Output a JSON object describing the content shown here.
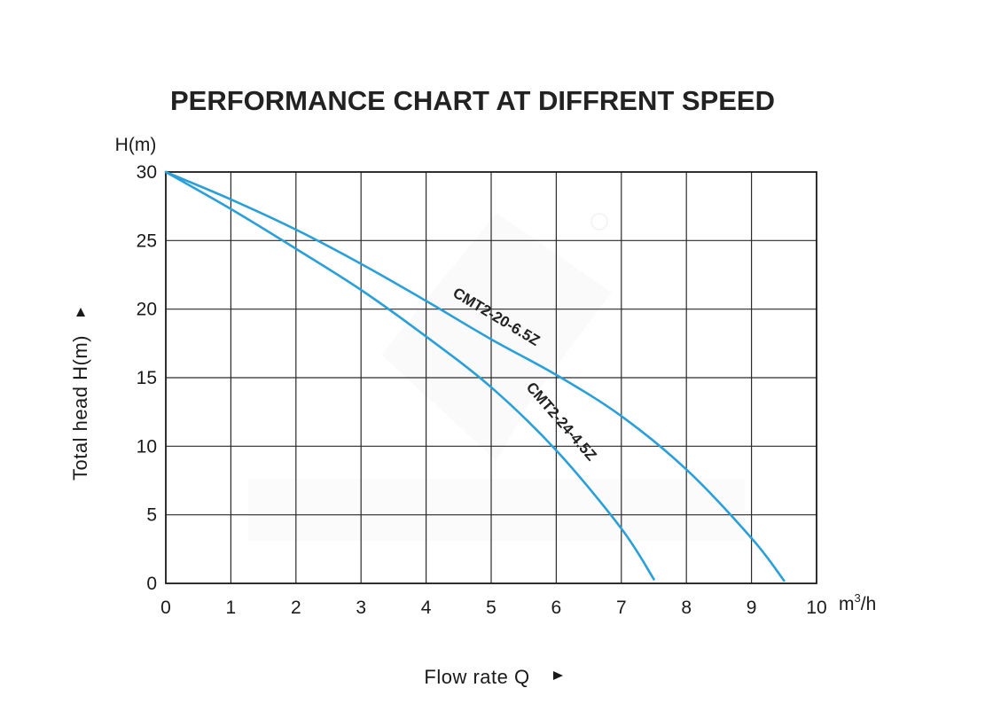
{
  "chart_data": {
    "type": "line",
    "title": "PERFORMANCE CHART AT DIFFRENT SPEED",
    "y_unit_top": "H(m)",
    "ylabel": "Total head H(m)",
    "xlabel": "Flow rate Q",
    "x_unit": "m",
    "x_unit_sup": "3",
    "x_unit_tail": "/h",
    "xlim": [
      0,
      10
    ],
    "ylim": [
      0,
      30
    ],
    "xticks": [
      "0",
      "1",
      "2",
      "3",
      "4",
      "5",
      "6",
      "7",
      "8",
      "9",
      "10"
    ],
    "yticks": [
      "0",
      "5",
      "10",
      "15",
      "20",
      "25",
      "30"
    ],
    "grid": true,
    "series": [
      {
        "name": "CMT2-20-6.5Z",
        "color": "#2a9fd8",
        "x": [
          0,
          1,
          2,
          3,
          4,
          5,
          6,
          7,
          8,
          9,
          9.5
        ],
        "y": [
          30,
          28,
          25.8,
          23.3,
          20.6,
          17.8,
          15.2,
          12.2,
          8.3,
          3.3,
          0.2
        ]
      },
      {
        "name": "CMT2-24-4.5Z",
        "color": "#2a9fd8",
        "x": [
          0,
          1,
          2,
          3,
          4,
          5,
          6,
          7,
          7.5
        ],
        "y": [
          30,
          27.3,
          24.4,
          21.4,
          18.0,
          14.3,
          9.7,
          4.0,
          0.3
        ]
      }
    ]
  }
}
